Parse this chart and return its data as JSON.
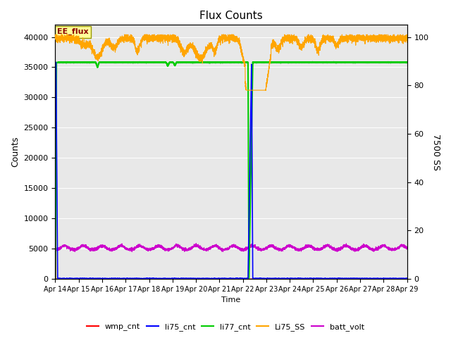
{
  "title": "Flux Counts",
  "xlabel": "Time",
  "ylabel_left": "Counts",
  "ylabel_right": "7500 SS",
  "xlim_days": [
    0,
    15
  ],
  "ylim_left": [
    0,
    42000
  ],
  "ylim_right": [
    0,
    105
  ],
  "x_tick_labels": [
    "Apr 14",
    "Apr 15",
    "Apr 16",
    "Apr 17",
    "Apr 18",
    "Apr 19",
    "Apr 20",
    "Apr 21",
    "Apr 22",
    "Apr 23",
    "Apr 24",
    "Apr 25",
    "Apr 26",
    "Apr 27",
    "Apr 28",
    "Apr 29"
  ],
  "annotation_text": "EE_flux",
  "colors": {
    "wmp_cnt": "#ff0000",
    "li75_cnt": "#0000ff",
    "li77_cnt": "#00cc00",
    "Li75_SS": "#ffa500",
    "batt_volt": "#cc00cc",
    "background": "#e8e8e8"
  },
  "right_yticks": [
    0,
    20,
    40,
    60,
    80,
    100
  ],
  "left_yticks": [
    0,
    5000,
    10000,
    15000,
    20000,
    25000,
    30000,
    35000,
    40000
  ],
  "legend_labels": [
    "wmp_cnt",
    "li75_cnt",
    "li77_cnt",
    "Li75_SS",
    "batt_volt"
  ]
}
